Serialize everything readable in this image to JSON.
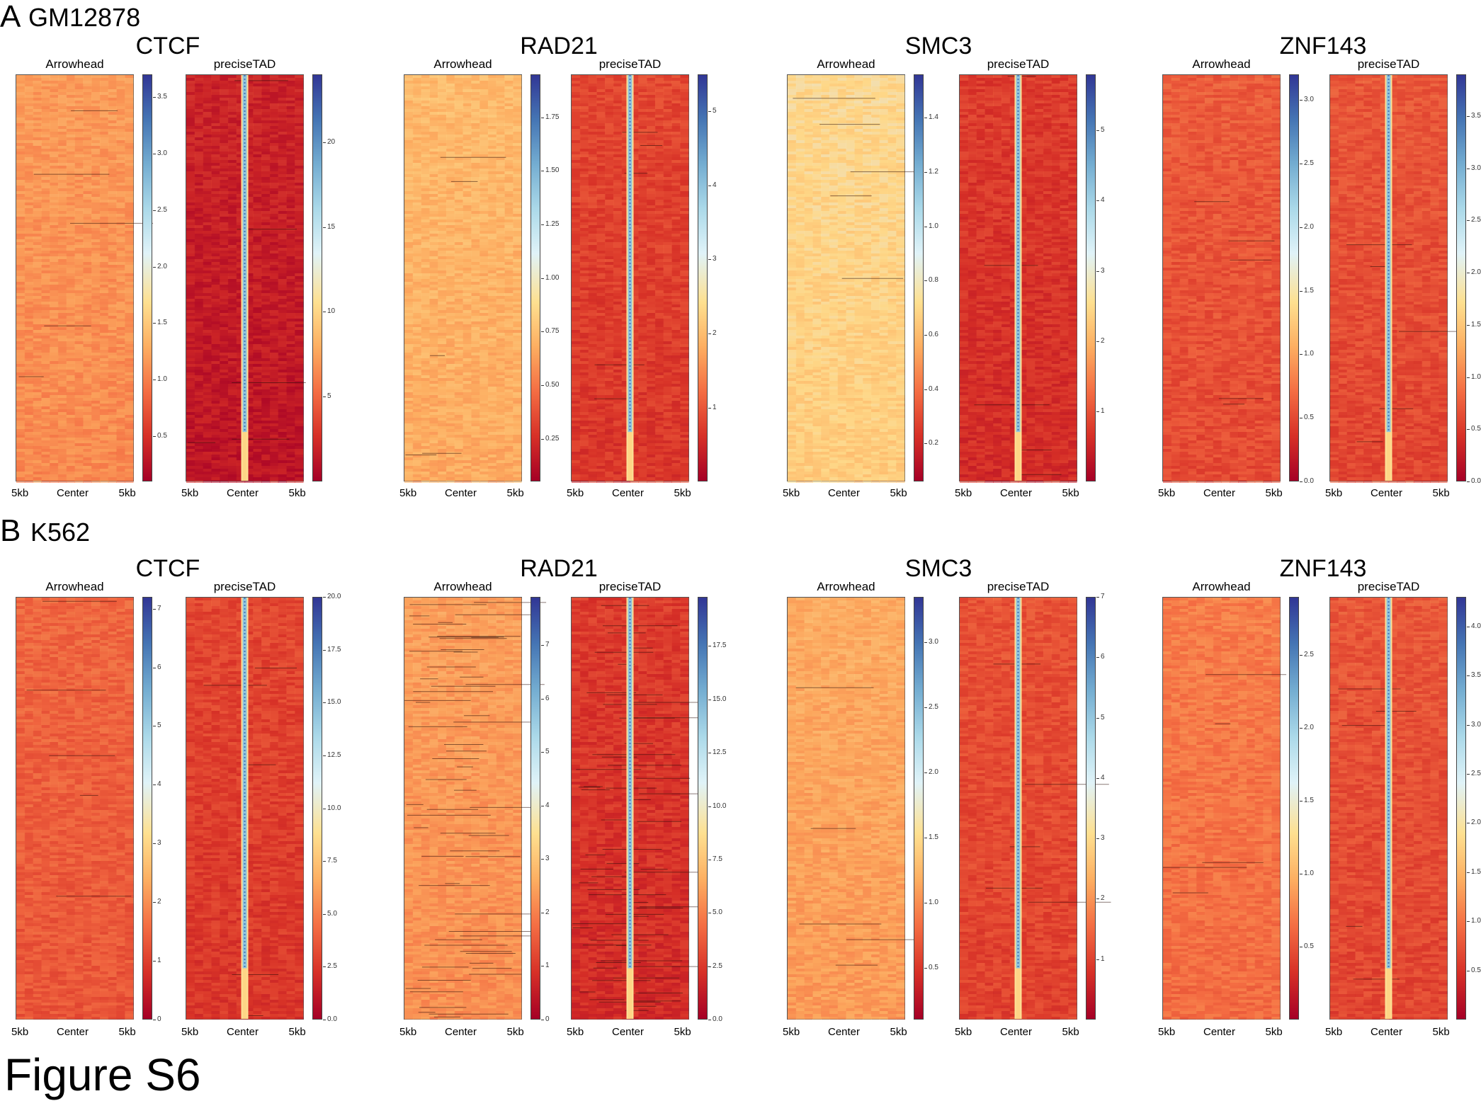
{
  "figure_caption": "Figure S6",
  "panels": [
    {
      "letter": "A",
      "cell_line": "GM12878"
    },
    {
      "letter": "B",
      "cell_line": "K562"
    }
  ],
  "colormap": [
    "#a50026",
    "#d73027",
    "#f46d43",
    "#fdae61",
    "#fee090",
    "#e0f3f8",
    "#abd9e9",
    "#74add1",
    "#4575b4",
    "#313695"
  ],
  "chart_data": [
    {
      "type": "heatmap",
      "panel": "A",
      "factor": "CTCF",
      "method": "Arrowhead",
      "x_ticks": [
        "5kb",
        "Center",
        "5kb"
      ],
      "colorbar_ticks": [
        "0.5",
        "1.0",
        "1.5",
        "2.0",
        "2.5",
        "3.0",
        "3.5"
      ],
      "colorbar_range": [
        0.1,
        3.7
      ],
      "background_level": 0.27,
      "center_signal": false
    },
    {
      "type": "heatmap",
      "panel": "A",
      "factor": "CTCF",
      "method": "preciseTAD",
      "x_ticks": [
        "5kb",
        "Center",
        "5kb"
      ],
      "colorbar_ticks": [
        "5",
        "10",
        "15",
        "20"
      ],
      "colorbar_range": [
        0,
        24
      ],
      "background_level": 0.05,
      "center_signal": true
    },
    {
      "type": "heatmap",
      "panel": "A",
      "factor": "RAD21",
      "method": "Arrowhead",
      "x_ticks": [
        "5kb",
        "Center",
        "5kb"
      ],
      "colorbar_ticks": [
        "0.25",
        "0.50",
        "0.75",
        "1.00",
        "1.25",
        "1.50",
        "1.75"
      ],
      "colorbar_range": [
        0.05,
        1.95
      ],
      "background_level": 0.33,
      "center_signal": false
    },
    {
      "type": "heatmap",
      "panel": "A",
      "factor": "RAD21",
      "method": "preciseTAD",
      "x_ticks": [
        "5kb",
        "Center",
        "5kb"
      ],
      "colorbar_ticks": [
        "1",
        "2",
        "3",
        "4",
        "5"
      ],
      "colorbar_range": [
        0,
        5.5
      ],
      "background_level": 0.12,
      "center_signal": true
    },
    {
      "type": "heatmap",
      "panel": "A",
      "factor": "SMC3",
      "method": "Arrowhead",
      "x_ticks": [
        "5kb",
        "Center",
        "5kb"
      ],
      "colorbar_ticks": [
        "0.2",
        "0.4",
        "0.6",
        "0.8",
        "1.0",
        "1.2",
        "1.4"
      ],
      "colorbar_range": [
        0.06,
        1.56
      ],
      "background_level": 0.4,
      "center_signal": false
    },
    {
      "type": "heatmap",
      "panel": "A",
      "factor": "SMC3",
      "method": "preciseTAD",
      "x_ticks": [
        "5kb",
        "Center",
        "5kb"
      ],
      "colorbar_ticks": [
        "1",
        "2",
        "3",
        "4",
        "5"
      ],
      "colorbar_range": [
        0,
        5.8
      ],
      "background_level": 0.1,
      "center_signal": true
    },
    {
      "type": "heatmap",
      "panel": "A",
      "factor": "ZNF143",
      "method": "Arrowhead",
      "x_ticks": [
        "5kb",
        "Center",
        "5kb"
      ],
      "colorbar_ticks": [
        "0.0",
        "0.5",
        "1.0",
        "1.5",
        "2.0",
        "2.5",
        "3.0"
      ],
      "colorbar_range": [
        0,
        3.2
      ],
      "background_level": 0.16,
      "center_signal": false
    },
    {
      "type": "heatmap",
      "panel": "A",
      "factor": "ZNF143",
      "method": "preciseTAD",
      "x_ticks": [
        "5kb",
        "Center",
        "5kb"
      ],
      "colorbar_ticks": [
        "0.0",
        "0.5",
        "1.0",
        "1.5",
        "2.0",
        "2.5",
        "3.0",
        "3.5"
      ],
      "colorbar_range": [
        0,
        3.9
      ],
      "background_level": 0.15,
      "center_signal": true
    },
    {
      "type": "heatmap",
      "panel": "B",
      "factor": "CTCF",
      "method": "Arrowhead",
      "x_ticks": [
        "5kb",
        "Center",
        "5kb"
      ],
      "colorbar_ticks": [
        "0",
        "1",
        "2",
        "3",
        "4",
        "5",
        "6",
        "7"
      ],
      "colorbar_range": [
        0,
        7.2
      ],
      "background_level": 0.18,
      "center_signal": false
    },
    {
      "type": "heatmap",
      "panel": "B",
      "factor": "CTCF",
      "method": "preciseTAD",
      "x_ticks": [
        "5kb",
        "Center",
        "5kb"
      ],
      "colorbar_ticks": [
        "0.0",
        "2.5",
        "5.0",
        "7.5",
        "10.0",
        "12.5",
        "15.0",
        "17.5",
        "20.0"
      ],
      "colorbar_range": [
        0,
        20
      ],
      "background_level": 0.12,
      "center_signal": true
    },
    {
      "type": "heatmap",
      "panel": "B",
      "factor": "RAD21",
      "method": "Arrowhead",
      "x_ticks": [
        "5kb",
        "Center",
        "5kb"
      ],
      "colorbar_ticks": [
        "0",
        "1",
        "2",
        "3",
        "4",
        "5",
        "6",
        "7"
      ],
      "colorbar_range": [
        0,
        7.9
      ],
      "background_level": 0.28,
      "center_signal": false
    },
    {
      "type": "heatmap",
      "panel": "B",
      "factor": "RAD21",
      "method": "preciseTAD",
      "x_ticks": [
        "5kb",
        "Center",
        "5kb"
      ],
      "colorbar_ticks": [
        "0.0",
        "2.5",
        "5.0",
        "7.5",
        "10.0",
        "12.5",
        "15.0",
        "17.5"
      ],
      "colorbar_range": [
        0,
        19.8
      ],
      "background_level": 0.1,
      "center_signal": true
    },
    {
      "type": "heatmap",
      "panel": "B",
      "factor": "SMC3",
      "method": "Arrowhead",
      "x_ticks": [
        "5kb",
        "Center",
        "5kb"
      ],
      "colorbar_ticks": [
        "0.5",
        "1.0",
        "1.5",
        "2.0",
        "2.5",
        "3.0"
      ],
      "colorbar_range": [
        0.1,
        3.35
      ],
      "background_level": 0.3,
      "center_signal": false
    },
    {
      "type": "heatmap",
      "panel": "B",
      "factor": "SMC3",
      "method": "preciseTAD",
      "x_ticks": [
        "5kb",
        "Center",
        "5kb"
      ],
      "colorbar_ticks": [
        "1",
        "2",
        "3",
        "4",
        "5",
        "6",
        "7"
      ],
      "colorbar_range": [
        0,
        7
      ],
      "background_level": 0.14,
      "center_signal": true
    },
    {
      "type": "heatmap",
      "panel": "B",
      "factor": "ZNF143",
      "method": "Arrowhead",
      "x_ticks": [
        "5kb",
        "Center",
        "5kb"
      ],
      "colorbar_ticks": [
        "0.5",
        "1.0",
        "1.5",
        "2.0",
        "2.5"
      ],
      "colorbar_range": [
        0,
        2.9
      ],
      "background_level": 0.22,
      "center_signal": false
    },
    {
      "type": "heatmap",
      "panel": "B",
      "factor": "ZNF143",
      "method": "preciseTAD",
      "x_ticks": [
        "5kb",
        "Center",
        "5kb"
      ],
      "colorbar_ticks": [
        "0.5",
        "1.0",
        "1.5",
        "2.0",
        "2.5",
        "3.0",
        "3.5",
        "4.0"
      ],
      "colorbar_range": [
        0,
        4.3
      ],
      "background_level": 0.15,
      "center_signal": true
    }
  ]
}
